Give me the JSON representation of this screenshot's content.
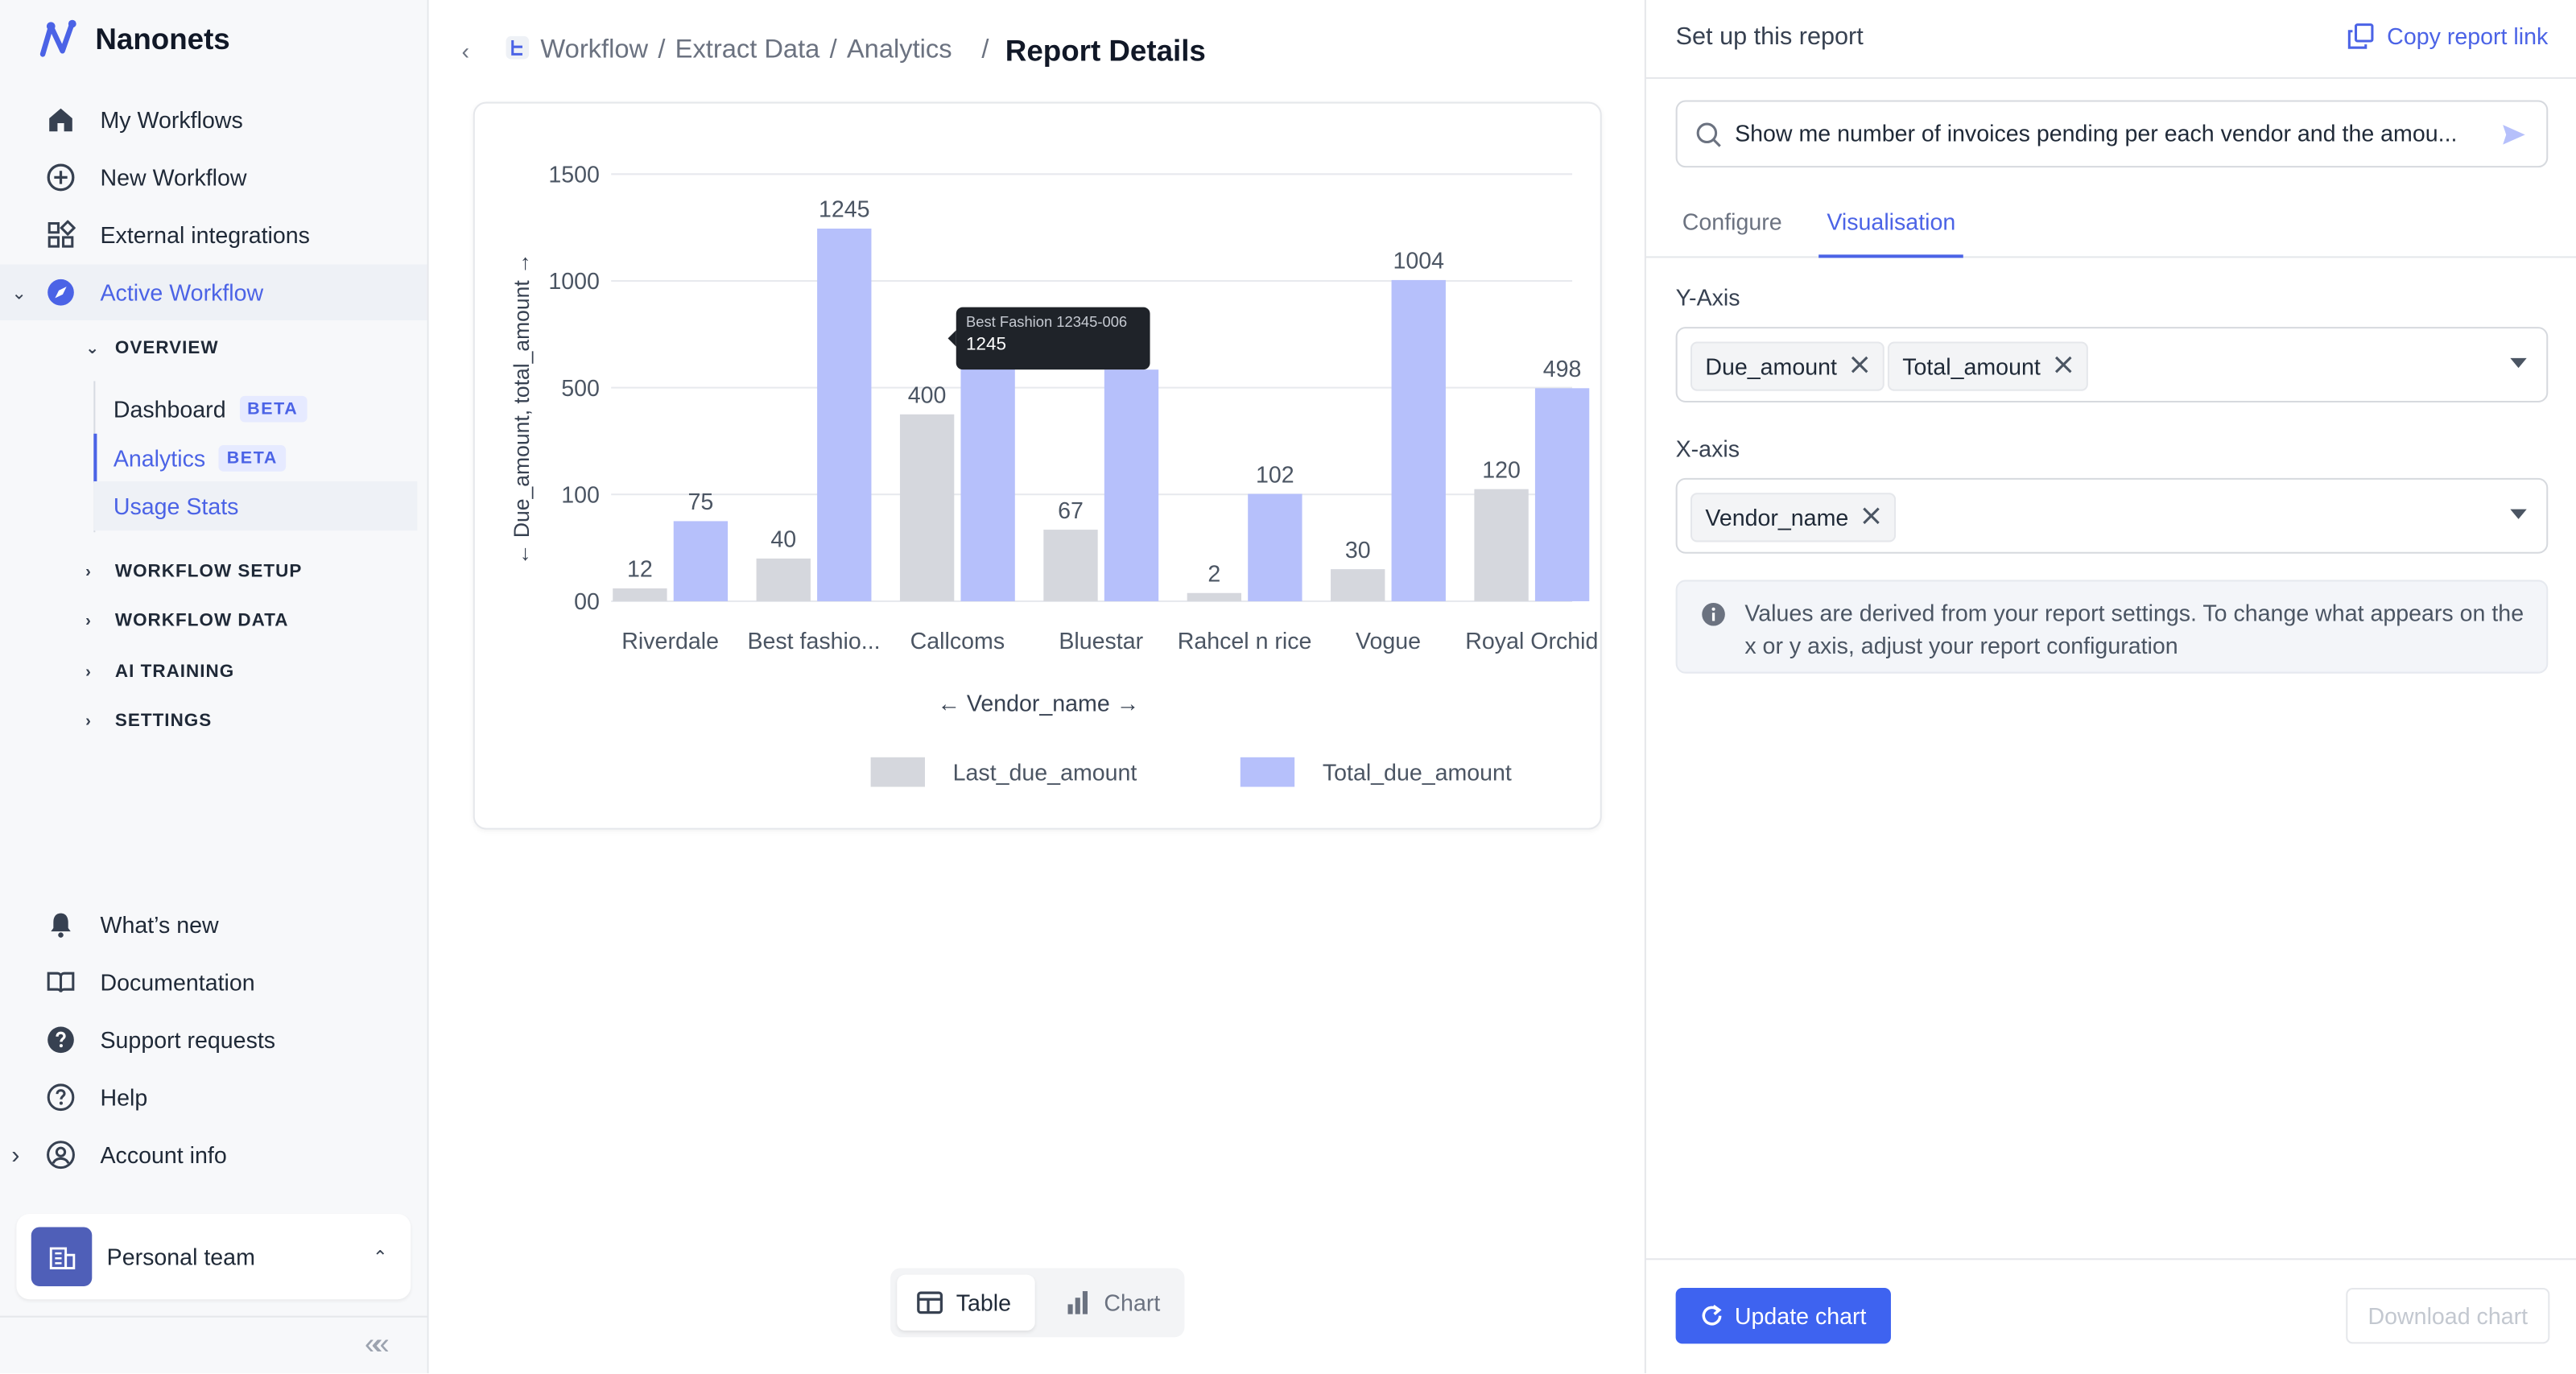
{
  "app": {
    "name": "Nanonets"
  },
  "sidebar": {
    "nav": [
      {
        "label": "My Workflows",
        "icon": "home-icon"
      },
      {
        "label": "New Workflow",
        "icon": "plus-circle-icon"
      },
      {
        "label": "External integrations",
        "icon": "grid-icon"
      },
      {
        "label": "Active Workflow",
        "icon": "compass-icon"
      }
    ],
    "overview_label": "OVERVIEW",
    "overview_items": [
      {
        "label": "Dashboard",
        "badge": "BETA"
      },
      {
        "label": "Analytics",
        "badge": "BETA"
      },
      {
        "label": "Usage Stats"
      }
    ],
    "sections": [
      "WORKFLOW SETUP",
      "WORKFLOW DATA",
      "AI TRAINING",
      "SETTINGS"
    ],
    "bottom": [
      {
        "label": "What’s new",
        "icon": "bell-icon"
      },
      {
        "label": "Documentation",
        "icon": "book-icon"
      },
      {
        "label": "Support requests",
        "icon": "help-circle-icon"
      },
      {
        "label": "Help",
        "icon": "question-icon"
      },
      {
        "label": "Account info",
        "icon": "user-circle-icon"
      }
    ],
    "team": "Personal team"
  },
  "breadcrumb": {
    "items": [
      "Workflow",
      "Extract Data",
      "Analytics"
    ],
    "current": "Report Details"
  },
  "tooltip": {
    "label": "Best Fashion 12345-006",
    "value": "1245"
  },
  "view_toggle": {
    "table": "Table",
    "chart": "Chart"
  },
  "panel": {
    "title": "Set up this report",
    "copy_link": "Copy report link",
    "query": "Show me number of invoices pending per each vendor and the amou...",
    "tabs": [
      "Configure",
      "Visualisation"
    ],
    "y_axis_label": "Y-Axis",
    "y_axis_chips": [
      "Due_amount",
      "Total_amount"
    ],
    "x_axis_label": "X-axis",
    "x_axis_chips": [
      "Vendor_name"
    ],
    "info": "Values are derived from your report settings. To change what appears on the x or y axis, adjust your report configuration",
    "update": "Update chart",
    "download": "Download chart"
  },
  "colors": {
    "accent": "#4b63e6",
    "bar_last_due": "#d5d7dd",
    "bar_total_due": "#b6c0fb"
  },
  "chart_data": {
    "type": "bar",
    "categories": [
      "Riverdale",
      "Best fashio...",
      "Callcoms",
      "Bluestar",
      "Rahcel n rice",
      "Vogue",
      "Royal Orchid"
    ],
    "series": [
      {
        "name": "Last_due_amount",
        "values": [
          12,
          40,
          400,
          67,
          2,
          30,
          120
        ],
        "labels": [
          "12",
          "40",
          "400",
          "67",
          "2",
          "30",
          "120"
        ]
      },
      {
        "name": "Total_due_amount",
        "values": [
          75,
          1245,
          null,
          null,
          102,
          1004,
          498
        ],
        "labels": [
          "75",
          "1245",
          "",
          "",
          "102",
          "1004",
          "498"
        ]
      }
    ],
    "yticks": [
      "00",
      "100",
      "500",
      "1000",
      "1500"
    ],
    "xlabel": "Vendor_name",
    "ylabel": "Due_amount, total_amount",
    "legend": "bottom"
  }
}
